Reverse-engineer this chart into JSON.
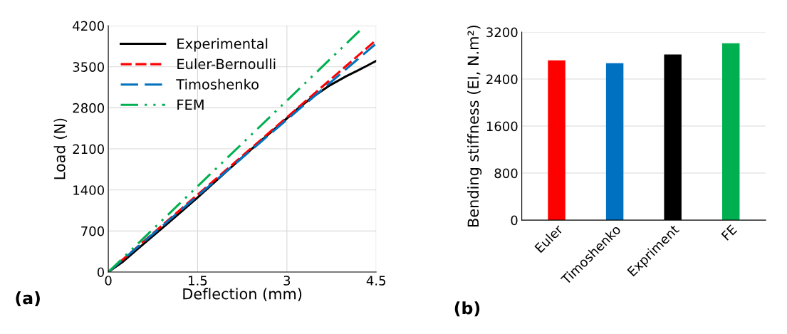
{
  "chart_data": [
    {
      "type": "line",
      "xlabel": "Deflection (mm)",
      "ylabel": "Load (N)",
      "xlim": [
        0,
        4.5
      ],
      "xticks": [
        0,
        1.5,
        3,
        4.5
      ],
      "ylim": [
        0,
        4200
      ],
      "yticks": [
        0,
        700,
        1400,
        2100,
        2800,
        3500,
        4200
      ],
      "grid": true,
      "legend": "top left",
      "annotations": [
        "(a)"
      ],
      "series": [
        {
          "name": "Experimental",
          "color": "#000000",
          "line_style": "solid",
          "x": [
            0,
            0.25,
            0.5,
            1.0,
            1.5,
            2.0,
            2.5,
            3.0,
            3.2,
            3.4,
            3.7,
            4.0,
            4.2,
            4.5
          ],
          "values": [
            0,
            180,
            400,
            830,
            1270,
            1730,
            2180,
            2620,
            2800,
            2960,
            3170,
            3340,
            3440,
            3600
          ]
        },
        {
          "name": "Euler-Bernoulli",
          "color": "#ff0000",
          "line_style": "dashed",
          "x": [
            0,
            4.48
          ],
          "values": [
            0,
            3940
          ]
        },
        {
          "name": "Timoshenko",
          "color": "#0070c0",
          "line_style": "longdashed",
          "x": [
            0,
            4.48
          ],
          "values": [
            0,
            3880
          ]
        },
        {
          "name": "FEM",
          "color": "#00b050",
          "line_style": "dashdotdot",
          "x": [
            0,
            4.26
          ],
          "values": [
            0,
            4150
          ]
        }
      ]
    },
    {
      "type": "bar",
      "ylabel": "Bending stiffness (EI, N.m²)",
      "categories": [
        "Euler",
        "Timoshenko",
        "Expriment",
        "FE"
      ],
      "values": [
        2720,
        2670,
        2820,
        3010
      ],
      "colors": [
        "#ff0000",
        "#0070c0",
        "#000000",
        "#00b050"
      ],
      "ylim": [
        0,
        3200
      ],
      "yticks": [
        0,
        800,
        1600,
        2400,
        3200
      ],
      "grid": "y",
      "annotations": [
        "(b)"
      ]
    }
  ]
}
